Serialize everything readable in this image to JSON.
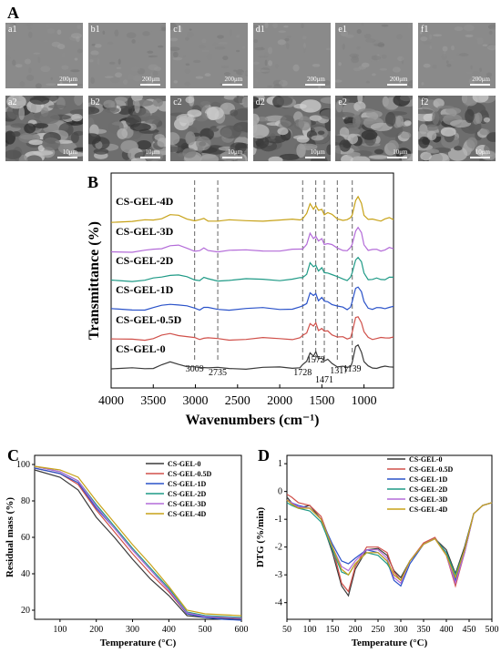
{
  "panels": {
    "a": "A",
    "b": "B",
    "c": "C",
    "d": "D"
  },
  "sem": {
    "top_row": [
      {
        "label": "a1",
        "scale": "200μm"
      },
      {
        "label": "b1",
        "scale": "200μm"
      },
      {
        "label": "c1",
        "scale": "200μm"
      },
      {
        "label": "d1",
        "scale": "200μm"
      },
      {
        "label": "e1",
        "scale": "200μm"
      },
      {
        "label": "f1",
        "scale": "200μm"
      }
    ],
    "bottom_row": [
      {
        "label": "a2",
        "scale": "10μm"
      },
      {
        "label": "b2",
        "scale": "10μm"
      },
      {
        "label": "c2",
        "scale": "10μm"
      },
      {
        "label": "d2",
        "scale": "10μm"
      },
      {
        "label": "e2",
        "scale": "10μm"
      },
      {
        "label": "f2",
        "scale": "10μm"
      }
    ]
  },
  "colors": {
    "CS-GEL-0": "#3a3a3a",
    "CS-GEL-0.5D": "#d0504a",
    "CS-GEL-1D": "#2a52c9",
    "CS-GEL-2D": "#1f9a86",
    "CS-GEL-3D": "#b36bd8",
    "CS-GEL-4D": "#c7a218"
  },
  "chart_data": [
    {
      "type": "line",
      "panel": "B",
      "xlabel": "Wavenumbers (cm⁻¹)",
      "ylabel": "Transmittance (%)",
      "xlim": [
        4000,
        650
      ],
      "x_reversed": true,
      "xticks": [
        "4000",
        "3500",
        "3000",
        "2500",
        "2000",
        "1500",
        "1000"
      ],
      "peak_labels": [
        {
          "x": 3009,
          "text": "3009"
        },
        {
          "x": 2735,
          "text": "2735"
        },
        {
          "x": 1728,
          "text": "1728"
        },
        {
          "x": 1572,
          "text": "1572"
        },
        {
          "x": 1471,
          "text": "1471"
        },
        {
          "x": 1317,
          "text": "1317"
        },
        {
          "x": 1139,
          "text": "1139"
        }
      ],
      "series": [
        {
          "name": "CS-GEL-0"
        },
        {
          "name": "CS-GEL-0.5D"
        },
        {
          "name": "CS-GEL-1D"
        },
        {
          "name": "CS-GEL-2D"
        },
        {
          "name": "CS-GEL-3D"
        },
        {
          "name": "CS-GEL-4D"
        }
      ],
      "spectrum_points": {
        "x": [
          4000,
          3750,
          3600,
          3500,
          3400,
          3300,
          3200,
          3100,
          3009,
          2950,
          2900,
          2850,
          2735,
          2600,
          2400,
          2200,
          2000,
          1850,
          1760,
          1728,
          1680,
          1640,
          1600,
          1572,
          1540,
          1500,
          1471,
          1430,
          1380,
          1317,
          1250,
          1200,
          1160,
          1139,
          1100,
          1070,
          1030,
          1000,
          950,
          900,
          850,
          800,
          750,
          700,
          650
        ],
        "y": [
          0,
          0,
          0.02,
          0.06,
          0.15,
          0.26,
          0.22,
          0.12,
          0.05,
          0.03,
          0.1,
          0.05,
          0.02,
          0.02,
          0.03,
          0.05,
          0.04,
          0.05,
          0.08,
          0.14,
          0.3,
          0.72,
          0.55,
          0.68,
          0.42,
          0.5,
          0.32,
          0.36,
          0.25,
          0.12,
          0.08,
          0.04,
          0.12,
          0.3,
          0.9,
          1.0,
          0.75,
          0.3,
          0.08,
          0.05,
          0.06,
          0.05,
          0.08,
          0.12,
          0.1
        ]
      },
      "offsets_pct": [
        0,
        17,
        34,
        50,
        66,
        83
      ]
    },
    {
      "type": "line",
      "panel": "C",
      "xlabel": "Temperature (°C)",
      "ylabel": "Residual mass (%)",
      "xlim": [
        30,
        600
      ],
      "ylim": [
        15,
        105
      ],
      "xticks": [
        100,
        200,
        300,
        400,
        500,
        600
      ],
      "yticks": [
        20,
        40,
        60,
        80,
        100
      ],
      "legend": "top-right",
      "series": [
        {
          "name": "CS-GEL-0",
          "x": [
            30,
            100,
            150,
            200,
            250,
            300,
            350,
            400,
            450,
            500,
            550,
            600
          ],
          "y": [
            97,
            93,
            86,
            71,
            60,
            48,
            37,
            28,
            17,
            16,
            15.5,
            15
          ]
        },
        {
          "name": "CS-GEL-0.5D",
          "x": [
            30,
            100,
            150,
            200,
            250,
            300,
            350,
            400,
            450,
            500,
            550,
            600
          ],
          "y": [
            98,
            95,
            89,
            75,
            63,
            51,
            40,
            30,
            18,
            16.5,
            16,
            15.5
          ]
        },
        {
          "name": "CS-GEL-1D",
          "x": [
            30,
            100,
            150,
            200,
            250,
            300,
            350,
            400,
            450,
            500,
            550,
            600
          ],
          "y": [
            98,
            95,
            90,
            76,
            65,
            53,
            42,
            31,
            18,
            16,
            15,
            14.5
          ]
        },
        {
          "name": "CS-GEL-2D",
          "x": [
            30,
            100,
            150,
            200,
            250,
            300,
            350,
            400,
            450,
            500,
            550,
            600
          ],
          "y": [
            99,
            96,
            91,
            78,
            66,
            54,
            43,
            32,
            19,
            17,
            16.5,
            16
          ]
        },
        {
          "name": "CS-GEL-3D",
          "x": [
            30,
            100,
            150,
            200,
            250,
            300,
            350,
            400,
            450,
            500,
            550,
            600
          ],
          "y": [
            99,
            96,
            91,
            77,
            65,
            53,
            42,
            31,
            18.5,
            16.5,
            16,
            15.5
          ]
        },
        {
          "name": "CS-GEL-4D",
          "x": [
            30,
            100,
            150,
            200,
            250,
            300,
            350,
            400,
            450,
            500,
            550,
            600
          ],
          "y": [
            99,
            97,
            93,
            80,
            68,
            56,
            45,
            33,
            20,
            18,
            17.5,
            17
          ]
        }
      ]
    },
    {
      "type": "line",
      "panel": "D",
      "xlabel": "Temperature (°C)",
      "ylabel": "DTG (%/min)",
      "xlim": [
        50,
        500
      ],
      "ylim": [
        -4.6,
        1.3
      ],
      "xticks": [
        50,
        100,
        150,
        200,
        250,
        300,
        350,
        400,
        450,
        500
      ],
      "yticks": [
        1,
        0,
        -1,
        -2,
        -3,
        -4
      ],
      "legend": "top-center",
      "series": [
        {
          "name": "CS-GEL-0",
          "x": [
            50,
            60,
            75,
            100,
            125,
            150,
            170,
            185,
            200,
            225,
            250,
            270,
            285,
            300,
            320,
            350,
            375,
            400,
            420,
            440,
            460,
            480,
            500
          ],
          "y": [
            -0.2,
            -0.4,
            -0.6,
            -0.5,
            -1.0,
            -2.2,
            -3.4,
            -3.75,
            -2.8,
            -2.1,
            -2.05,
            -2.3,
            -2.85,
            -3.1,
            -2.5,
            -1.9,
            -1.7,
            -2.1,
            -2.95,
            -2.0,
            -0.8,
            -0.5,
            -0.4
          ]
        },
        {
          "name": "CS-GEL-0.5D",
          "x": [
            50,
            60,
            75,
            100,
            125,
            150,
            170,
            185,
            200,
            225,
            250,
            270,
            285,
            300,
            320,
            350,
            375,
            400,
            420,
            440,
            460,
            480,
            500
          ],
          "y": [
            -0.1,
            -0.2,
            -0.4,
            -0.5,
            -0.9,
            -2.0,
            -3.3,
            -3.6,
            -2.7,
            -2.0,
            -2.0,
            -2.2,
            -2.9,
            -3.2,
            -2.5,
            -1.85,
            -1.65,
            -2.3,
            -3.4,
            -2.2,
            -0.8,
            -0.5,
            -0.4
          ]
        },
        {
          "name": "CS-GEL-1D",
          "x": [
            50,
            60,
            75,
            100,
            125,
            150,
            170,
            185,
            200,
            225,
            250,
            270,
            285,
            300,
            320,
            350,
            375,
            400,
            420,
            440,
            460,
            480,
            500
          ],
          "y": [
            -0.3,
            -0.4,
            -0.5,
            -0.6,
            -1.0,
            -1.9,
            -2.5,
            -2.6,
            -2.4,
            -2.1,
            -2.2,
            -2.5,
            -3.2,
            -3.4,
            -2.6,
            -1.9,
            -1.7,
            -2.2,
            -3.2,
            -2.2,
            -0.8,
            -0.5,
            -0.4
          ]
        },
        {
          "name": "CS-GEL-2D",
          "x": [
            50,
            60,
            75,
            100,
            125,
            150,
            170,
            185,
            200,
            225,
            250,
            270,
            285,
            300,
            320,
            350,
            375,
            400,
            420,
            440,
            460,
            480,
            500
          ],
          "y": [
            -0.4,
            -0.5,
            -0.6,
            -0.7,
            -1.1,
            -2.1,
            -2.9,
            -3.0,
            -2.6,
            -2.2,
            -2.3,
            -2.6,
            -3.0,
            -3.2,
            -2.5,
            -1.9,
            -1.7,
            -2.2,
            -3.0,
            -2.1,
            -0.8,
            -0.5,
            -0.4
          ]
        },
        {
          "name": "CS-GEL-3D",
          "x": [
            50,
            60,
            75,
            100,
            125,
            150,
            170,
            185,
            200,
            225,
            250,
            270,
            285,
            300,
            320,
            350,
            375,
            400,
            420,
            440,
            460,
            480,
            500
          ],
          "y": [
            -0.3,
            -0.4,
            -0.55,
            -0.6,
            -1.0,
            -2.0,
            -2.7,
            -2.85,
            -2.5,
            -2.1,
            -2.1,
            -2.4,
            -3.1,
            -3.3,
            -2.5,
            -1.9,
            -1.7,
            -2.3,
            -3.3,
            -2.2,
            -0.8,
            -0.5,
            -0.4
          ]
        },
        {
          "name": "CS-GEL-4D",
          "x": [
            50,
            60,
            75,
            100,
            125,
            150,
            170,
            185,
            200,
            225,
            250,
            270,
            285,
            300,
            320,
            350,
            375,
            400,
            420,
            440,
            460,
            480,
            500
          ],
          "y": [
            -0.3,
            -0.45,
            -0.6,
            -0.6,
            -1.0,
            -2.0,
            -2.8,
            -3.0,
            -2.6,
            -2.2,
            -2.2,
            -2.5,
            -3.0,
            -3.2,
            -2.5,
            -1.9,
            -1.7,
            -2.3,
            -3.1,
            -2.1,
            -0.8,
            -0.5,
            -0.4
          ]
        }
      ]
    }
  ]
}
